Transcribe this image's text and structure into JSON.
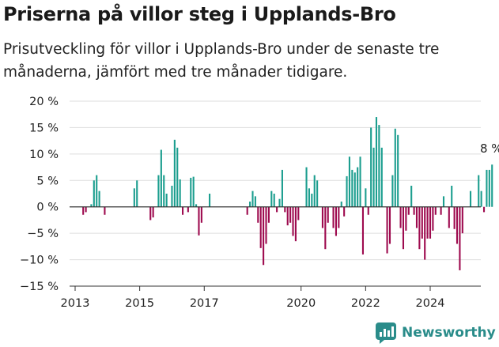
{
  "header": {
    "title": "Priserna på villor steg i Upplands-Bro",
    "subtitle": "Prisutveckling för villor i Upplands-Bro under de senaste tre månaderna, jämfört med tre månader tidigare."
  },
  "brand": {
    "name": "Newsworthy",
    "icon": "newsworthy-logo-icon"
  },
  "colors": {
    "positive": "#1c9e8f",
    "negative": "#9e0b4f",
    "grid": "#dddddd",
    "zero_line": "#333333",
    "brand": "#2a8c8a"
  },
  "chart_data": {
    "type": "bar",
    "x_unit": "month",
    "x_start": "2013-04",
    "values": [
      -1.5,
      -1,
      0,
      0.5,
      5,
      6,
      3,
      0,
      -1.5,
      0,
      0,
      0,
      0,
      0,
      0,
      0,
      0,
      0,
      0,
      3.5,
      5,
      0,
      0,
      0,
      0,
      -2.5,
      -2,
      0,
      6,
      10.8,
      6,
      2.5,
      0,
      4,
      12.7,
      11.2,
      5.2,
      -1.5,
      0,
      -1,
      5.5,
      5.7,
      0.5,
      -5.4,
      -3,
      0,
      0,
      2.5,
      0,
      0,
      0,
      0,
      0,
      0,
      0,
      0,
      0,
      0,
      0,
      0,
      0,
      -1.5,
      1,
      3,
      2,
      -3,
      -7.8,
      -11,
      -7,
      -3,
      3,
      2.5,
      -1,
      1.5,
      7,
      -1,
      -3.5,
      -3,
      -5.5,
      -6.5,
      -2.5,
      0,
      0,
      7.5,
      3.5,
      2.5,
      6,
      5,
      0,
      -4,
      -8,
      -3,
      0,
      -4,
      -5.5,
      -4,
      1,
      -1.8,
      5.8,
      9.5,
      7,
      6.5,
      7.5,
      9.5,
      -9,
      3.5,
      -1.5,
      15,
      11.2,
      17,
      15.5,
      11.2,
      0,
      -8.8,
      -7,
      6,
      14.8,
      13.6,
      -4,
      -8,
      -4.5,
      -1.5,
      4,
      -1.5,
      -4,
      -8,
      -6,
      -10,
      -6,
      -6,
      -4.5,
      -1.5,
      0,
      -1.5,
      2,
      0,
      -4,
      4,
      -4.2,
      -7,
      -12,
      -5,
      0,
      0,
      3,
      0,
      0,
      6,
      3,
      -1,
      7,
      7,
      8
    ],
    "x_ticks": [
      "2013",
      "2015",
      "2017",
      "2020",
      "2022",
      "2024"
    ],
    "y_ticks": [
      "−15 %",
      "−10 %",
      "−5 %",
      "0 %",
      "5 %",
      "10 %",
      "15 %",
      "20 %"
    ],
    "ylim": [
      -15,
      20
    ],
    "annotation": "8 %",
    "grid": true,
    "legend": "none"
  }
}
